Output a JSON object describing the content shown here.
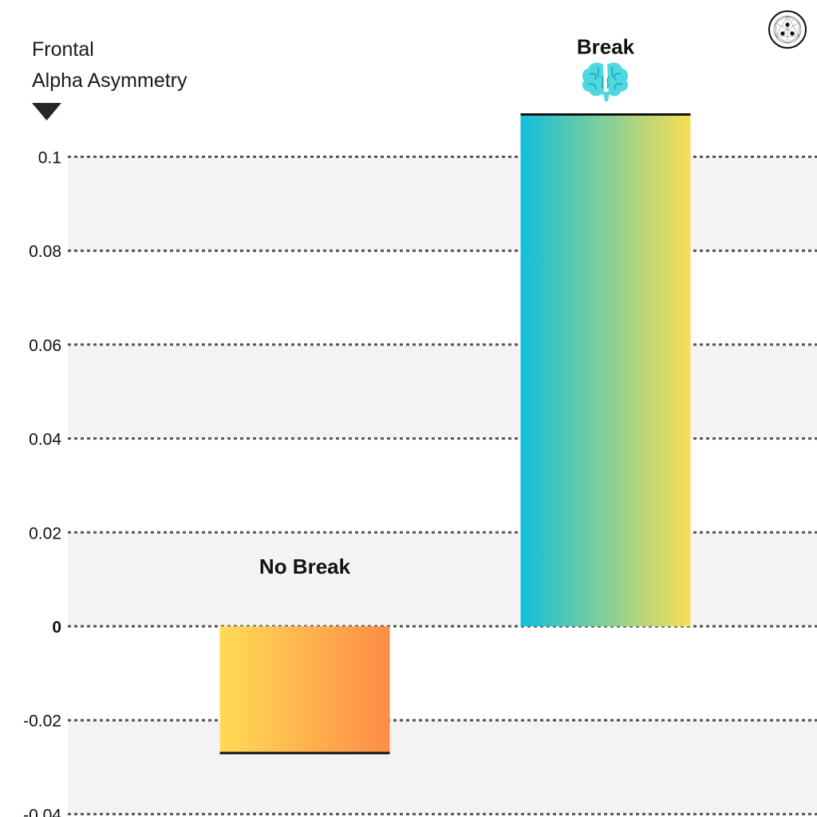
{
  "chart_data": {
    "type": "bar",
    "title": "",
    "ylabel": [
      "Frontal",
      "Alpha Asymmetry"
    ],
    "xlabel": "",
    "ylim": [
      -0.04,
      0.11
    ],
    "yticks": [
      0.1,
      0.08,
      0.06,
      0.04,
      0.02,
      0,
      -0.02,
      -0.04
    ],
    "ytick_labels": [
      "0.1",
      "0.08",
      "0.06",
      "0.04",
      "0.02",
      "0",
      "-0.02",
      "-0.04"
    ],
    "categories": [
      "No Break",
      "Break"
    ],
    "values": [
      -0.027,
      0.109
    ],
    "grid": "horizontal dotted",
    "bar_gradients": [
      [
        "#FFDB55",
        "#FF8C47"
      ],
      [
        "#10BFDA",
        "#F9DE55"
      ]
    ],
    "icons": [
      "brain-icon",
      "logo-icon"
    ]
  }
}
